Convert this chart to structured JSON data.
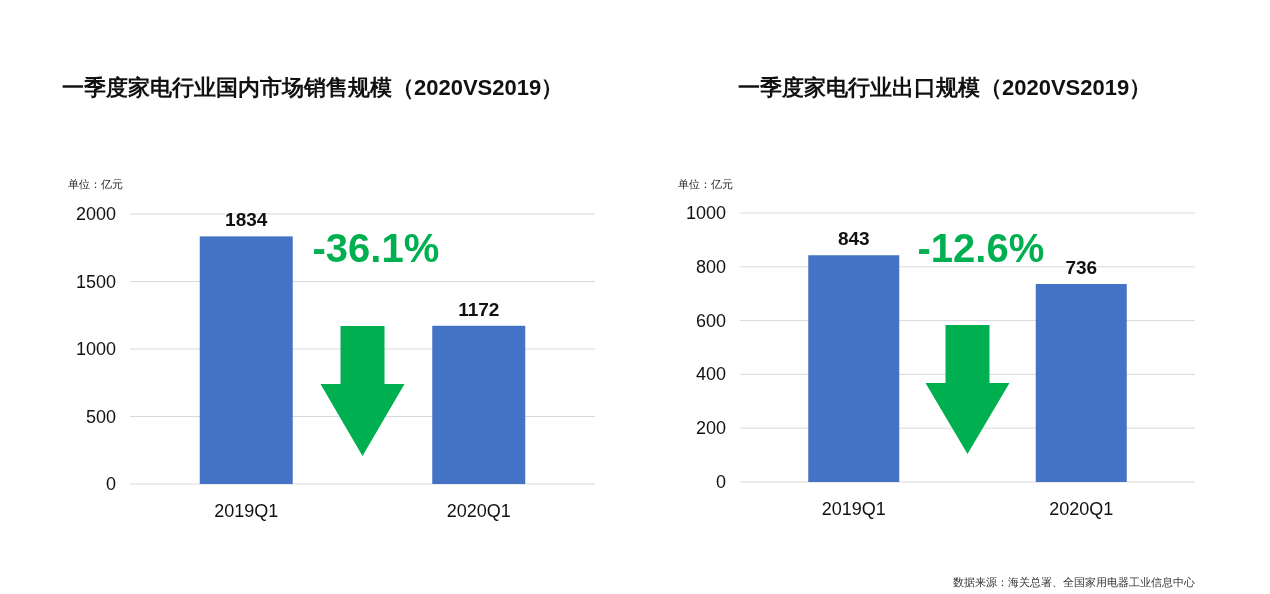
{
  "chart_data": [
    {
      "type": "bar",
      "title": "一季度家电行业国内市场销售规模（2020VS2019）",
      "categories": [
        "2019Q1",
        "2020Q1"
      ],
      "series": [
        {
          "color": "#4472c4",
          "values": [
            1834,
            1172
          ]
        }
      ],
      "ylim": [
        0,
        2000
      ],
      "yticks": [
        0,
        500,
        1000,
        1500,
        2000
      ],
      "grid": "y",
      "data_labels": true,
      "annotations": [
        "单位：亿元",
        "-36.1%"
      ]
    },
    {
      "type": "bar",
      "title": "一季度家电行业出口规模（2020VS2019）",
      "categories": [
        "2019Q1",
        "2020Q1"
      ],
      "series": [
        {
          "color": "#4472c4",
          "values": [
            843,
            736
          ]
        }
      ],
      "ylim": [
        0,
        1000
      ],
      "yticks": [
        0,
        200,
        400,
        600,
        800,
        1000
      ],
      "grid": "y",
      "data_labels": true,
      "annotations": [
        "单位：亿元",
        "-12.6%",
        "数据来源：海关总署、全国家用电器工业信息中心"
      ]
    }
  ]
}
